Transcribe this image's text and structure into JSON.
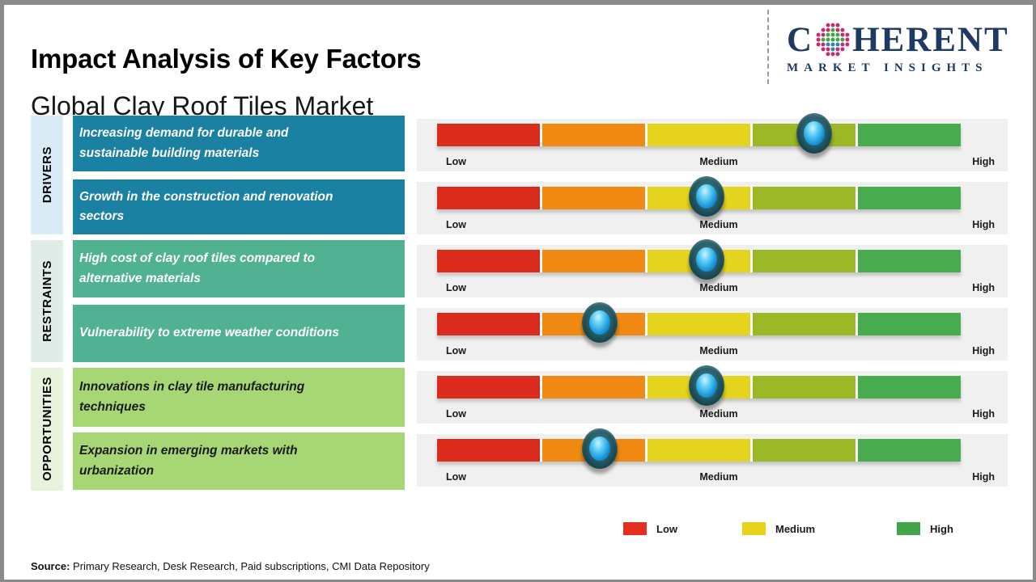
{
  "header": {
    "title": "Impact Analysis of Key Factors",
    "subtitle": "Global Clay Roof Tiles Market"
  },
  "logo": {
    "line1_prefix": "C",
    "line1_suffix": "HERENT",
    "line2": "MARKET INSIGHTS",
    "navy": "#1E3A62",
    "globe_colors": {
      "outer": "#C72A6E",
      "upper": "#3FA548",
      "lower": "#2F86B5"
    }
  },
  "scale_labels": {
    "low": "Low",
    "medium": "Medium",
    "high": "High"
  },
  "groups": [
    {
      "label": "DRIVERS",
      "strip_bg": "#D9ECF6",
      "box_bg": "#1B81A2",
      "box_text": "#FFFFFF"
    },
    {
      "label": "RESTRAINTS",
      "strip_bg": "#E0ECE7",
      "box_bg": "#50B292",
      "box_text": "#FFFFFF"
    },
    {
      "label": "OPPORTUNITIES",
      "strip_bg": "#E7F3DC",
      "box_bg": "#A7D775",
      "box_text": "#1A1A1A"
    }
  ],
  "rows": [
    {
      "group": "DRIVERS",
      "factor": "Increasing demand for durable and sustainable building materials",
      "impact": "Medium-High",
      "position": 0.72
    },
    {
      "group": "DRIVERS",
      "factor": "Growth in the construction and renovation sectors",
      "impact": "Medium",
      "position": 0.515
    },
    {
      "group": "RESTRAINTS",
      "factor": "High cost of clay roof tiles compared to alternative materials",
      "impact": "Medium",
      "position": 0.515
    },
    {
      "group": "RESTRAINTS",
      "factor": "Vulnerability to extreme weather conditions",
      "impact": "Low-Medium",
      "position": 0.31
    },
    {
      "group": "OPPORTUNITIES",
      "factor": "Innovations in clay tile manufacturing techniques",
      "impact": "Medium",
      "position": 0.515
    },
    {
      "group": "OPPORTUNITIES",
      "factor": "Expansion in emerging markets with urbanization",
      "impact": "Low-Medium",
      "position": 0.31
    }
  ],
  "bar_colors": [
    "#DB2B1D",
    "#F08A12",
    "#E5D41D",
    "#9CB827",
    "#48AB4D"
  ],
  "legend": [
    {
      "label": "Low",
      "color": "#E2311F"
    },
    {
      "label": "Medium",
      "color": "#E7D21B"
    },
    {
      "label": "High",
      "color": "#43A44A"
    }
  ],
  "source": {
    "label": "Source:",
    "text": "Primary Research, Desk Research, Paid subscriptions, CMI Data Repository"
  },
  "chart_data": {
    "type": "table",
    "title": "Impact Analysis of Key Factors",
    "subtitle": "Global Clay Roof Tiles Market",
    "scale": [
      "Low",
      "Medium",
      "High"
    ],
    "scale_segment_colors": [
      "#DB2B1D",
      "#F08A12",
      "#E5D41D",
      "#9CB827",
      "#48AB4D"
    ],
    "legend_position": "bottom",
    "rows": [
      {
        "category": "Drivers",
        "factor": "Increasing demand for durable and sustainable building materials",
        "impact_rating": "Medium-High",
        "position_0_to_1": 0.72
      },
      {
        "category": "Drivers",
        "factor": "Growth in the construction and renovation sectors",
        "impact_rating": "Medium",
        "position_0_to_1": 0.515
      },
      {
        "category": "Restraints",
        "factor": "High cost of clay roof tiles compared to alternative materials",
        "impact_rating": "Medium",
        "position_0_to_1": 0.515
      },
      {
        "category": "Restraints",
        "factor": "Vulnerability to extreme weather conditions",
        "impact_rating": "Low-Medium",
        "position_0_to_1": 0.31
      },
      {
        "category": "Opportunities",
        "factor": "Innovations in clay tile manufacturing techniques",
        "impact_rating": "Medium",
        "position_0_to_1": 0.515
      },
      {
        "category": "Opportunities",
        "factor": "Expansion in emerging markets with urbanization",
        "impact_rating": "Low-Medium",
        "position_0_to_1": 0.31
      }
    ],
    "source": "Primary Research, Desk Research, Paid subscriptions, CMI Data Repository"
  }
}
